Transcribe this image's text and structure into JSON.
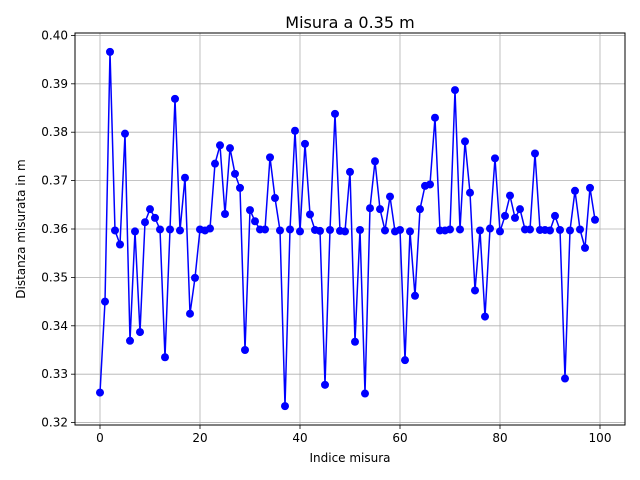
{
  "chart_data": {
    "type": "line",
    "title": "Misura a 0.35 m",
    "xlabel": "Indice misura",
    "ylabel": "Distanza misurata in m",
    "xlim": [
      -5,
      105
    ],
    "ylim": [
      0.3195,
      0.4005
    ],
    "xticks": [
      0,
      20,
      40,
      60,
      80,
      100
    ],
    "yticks": [
      0.32,
      0.33,
      0.34,
      0.35,
      0.36,
      0.37,
      0.38,
      0.39,
      0.4
    ],
    "ytick_labels": [
      "0.32",
      "0.33",
      "0.34",
      "0.35",
      "0.36",
      "0.37",
      "0.38",
      "0.39",
      "0.40"
    ],
    "grid": true,
    "color": "#0000ff",
    "marker": "circle",
    "series": [
      {
        "x": [
          0,
          1,
          2,
          3,
          4,
          5,
          6,
          7,
          8,
          9,
          10,
          11,
          12,
          13,
          14,
          15,
          16,
          17,
          18,
          19,
          20,
          21,
          22,
          23,
          24,
          25,
          26,
          27,
          28,
          29,
          30,
          31,
          32,
          33,
          34,
          35,
          36,
          37,
          38,
          39,
          40,
          41,
          42,
          43,
          44,
          45,
          46,
          47,
          48,
          49,
          50,
          51,
          52,
          53,
          54,
          55,
          56,
          57,
          58,
          59,
          60,
          61,
          62,
          63,
          64,
          65,
          66,
          67,
          68,
          69,
          70,
          71,
          72,
          73,
          74,
          75,
          76,
          77,
          78,
          79,
          80,
          81,
          82,
          83,
          84,
          85,
          86,
          87,
          88,
          89,
          90,
          91,
          92,
          93,
          94,
          95,
          96,
          97,
          98,
          99
        ],
        "values": [
          0.3262,
          0.345,
          0.3966,
          0.3597,
          0.3568,
          0.3797,
          0.3369,
          0.3595,
          0.3387,
          0.3614,
          0.3641,
          0.3623,
          0.3599,
          0.3335,
          0.3599,
          0.3869,
          0.3597,
          0.3706,
          0.3425,
          0.3499,
          0.3599,
          0.3597,
          0.3601,
          0.3735,
          0.3773,
          0.3631,
          0.3767,
          0.3714,
          0.3685,
          0.335,
          0.3639,
          0.3616,
          0.3599,
          0.3599,
          0.3748,
          0.3664,
          0.3597,
          0.3234,
          0.3599,
          0.3803,
          0.3595,
          0.3776,
          0.363,
          0.3598,
          0.3596,
          0.3278,
          0.3598,
          0.3838,
          0.3596,
          0.3595,
          0.3718,
          0.3367,
          0.3598,
          0.326,
          0.3643,
          0.374,
          0.3641,
          0.3597,
          0.3667,
          0.3595,
          0.3598,
          0.3329,
          0.3595,
          0.3462,
          0.3641,
          0.3689,
          0.3692,
          0.383,
          0.3597,
          0.3597,
          0.3599,
          0.3887,
          0.3599,
          0.3781,
          0.3675,
          0.3473,
          0.3597,
          0.3419,
          0.3601,
          0.3746,
          0.3595,
          0.3627,
          0.3669,
          0.3623,
          0.3641,
          0.3599,
          0.3599,
          0.3756,
          0.3598,
          0.3598,
          0.3597,
          0.3627,
          0.3598,
          0.3291,
          0.3597,
          0.3679,
          0.3599,
          0.3561,
          0.3685,
          0.3619
        ]
      }
    ]
  }
}
